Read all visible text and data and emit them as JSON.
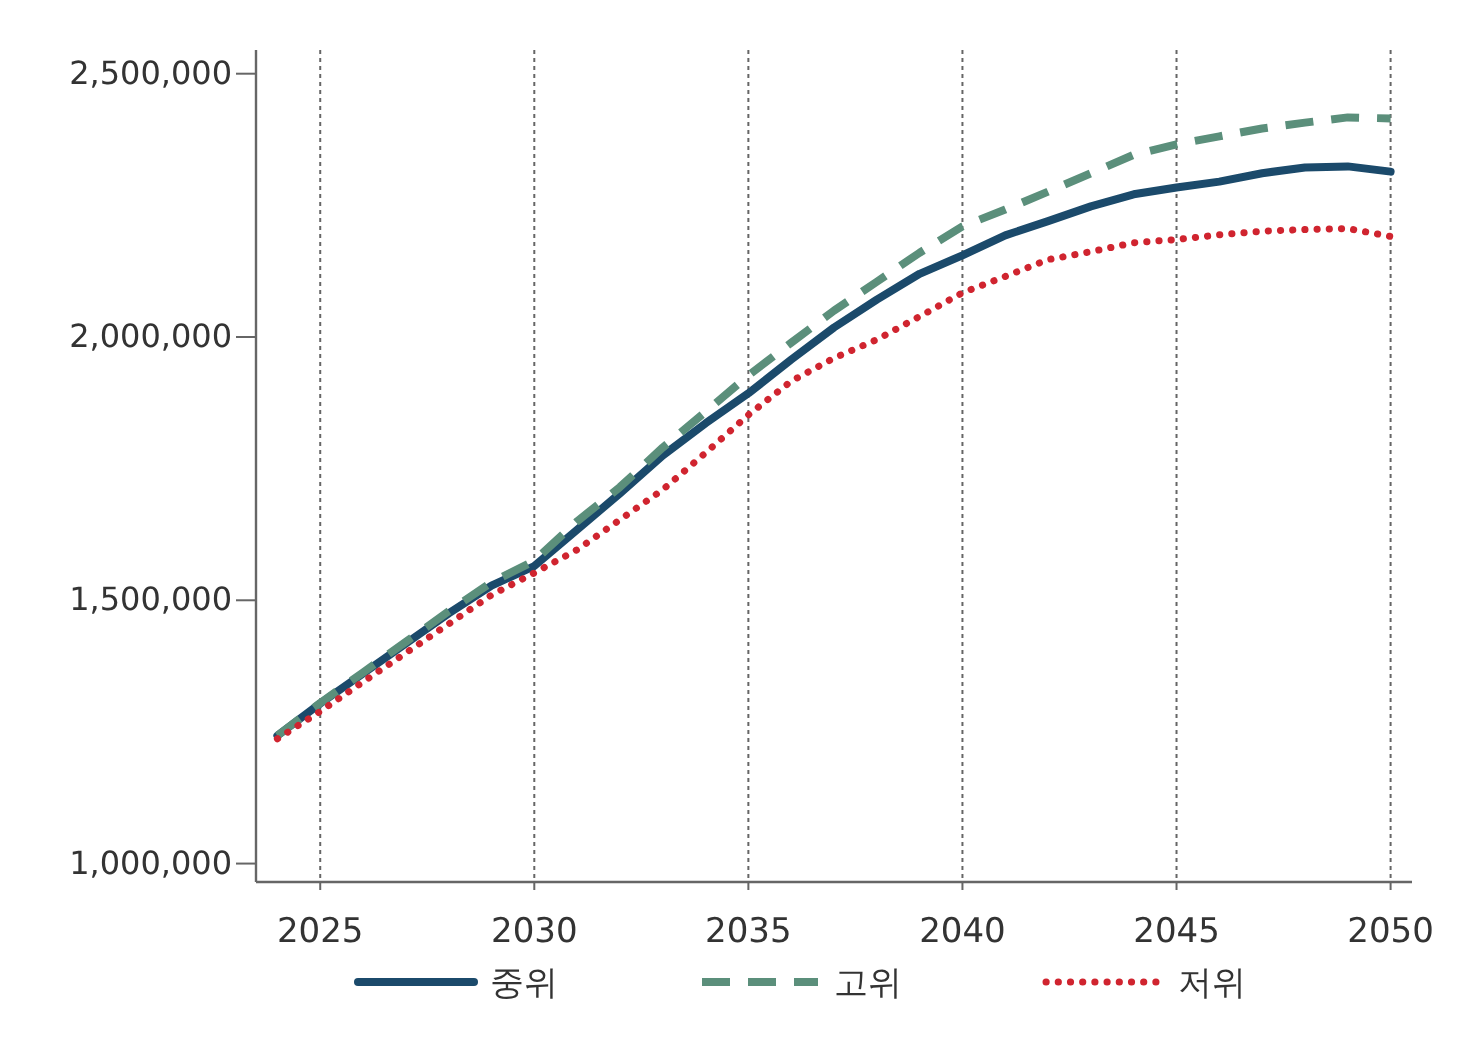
{
  "chart_data": {
    "type": "line",
    "x": [
      2024,
      2025,
      2026,
      2027,
      2028,
      2029,
      2030,
      2031,
      2032,
      2033,
      2034,
      2035,
      2036,
      2037,
      2038,
      2039,
      2040,
      2041,
      2042,
      2043,
      2044,
      2045,
      2046,
      2047,
      2048,
      2049,
      2050
    ],
    "series": [
      {
        "name": "중위",
        "color": "#1b4a6b",
        "line_style": "solid",
        "values": [
          1243000,
          1304000,
          1361000,
          1418000,
          1475000,
          1528000,
          1565000,
          1634000,
          1703000,
          1775000,
          1836000,
          1893000,
          1957000,
          2018000,
          2071000,
          2120000,
          2155000,
          2193000,
          2220000,
          2248000,
          2271000,
          2284000,
          2295000,
          2311000,
          2322000,
          2324000,
          2314000
        ]
      },
      {
        "name": "고위",
        "color": "#5b8f7b",
        "line_style": "dashed",
        "values": [
          1243000,
          1305000,
          1363000,
          1421000,
          1479000,
          1534000,
          1575000,
          1650000,
          1715000,
          1790000,
          1858000,
          1927000,
          1989000,
          2050000,
          2105000,
          2160000,
          2210000,
          2242000,
          2276000,
          2311000,
          2346000,
          2366000,
          2381000,
          2396000,
          2407000,
          2417000,
          2415000
        ]
      },
      {
        "name": "저위",
        "color": "#d0242f",
        "line_style": "dotted",
        "values": [
          1237000,
          1289000,
          1345000,
          1400000,
          1455000,
          1510000,
          1552000,
          1596000,
          1653000,
          1710000,
          1780000,
          1852000,
          1916000,
          1960000,
          1995000,
          2039000,
          2084000,
          2115000,
          2147000,
          2162000,
          2179000,
          2185000,
          2194000,
          2201000,
          2204000,
          2206000,
          2191000
        ]
      }
    ],
    "xlim": [
      2023.5,
      2050.5
    ],
    "ylim": [
      965000,
      2545000
    ],
    "xticks": [
      2025,
      2030,
      2035,
      2040,
      2045,
      2050
    ],
    "yticks": [
      {
        "value": 1000000,
        "label": "1,000,000"
      },
      {
        "value": 1500000,
        "label": "1,500,000"
      },
      {
        "value": 2000000,
        "label": "2,000,000"
      },
      {
        "value": 2500000,
        "label": "2,500,000"
      }
    ],
    "grid": "x",
    "legend": "bottom"
  }
}
